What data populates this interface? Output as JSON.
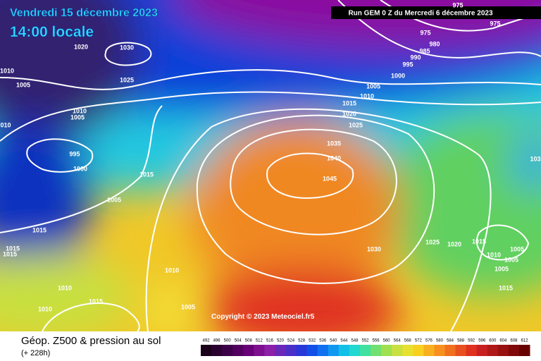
{
  "header": {
    "date": "Vendredi 15 décembre 2023",
    "time": "14:00 locale",
    "run": "Run GEM 0 Z du Mercredi 6 décembre 2023"
  },
  "copyright": "Copyright © 2023 Meteociel.fr5",
  "footer": {
    "title": "Géop. Z500 & pression au sol",
    "lead": "(+ 228h)"
  },
  "isobar_labels": [
    "975",
    "975",
    "975",
    "980",
    "985",
    "990",
    "995",
    "1000",
    "1005",
    "1010",
    "1015",
    "1020",
    "1025",
    "1035",
    "1040",
    "1045",
    "1030",
    "1025",
    "1020",
    "1010",
    "1005",
    "1010",
    "1005",
    "010",
    "995",
    "1000",
    "1015",
    "1005",
    "1015",
    "1015",
    "1015",
    "1030",
    "1025",
    "1020",
    "1015",
    "1005",
    "1010",
    "1005",
    "1005",
    "1015",
    "1010",
    "1010",
    "1015",
    "1010",
    "1005",
    "103"
  ],
  "scale": {
    "labels": [
      "492",
      "496",
      "500",
      "504",
      "508",
      "512",
      "516",
      "520",
      "524",
      "528",
      "532",
      "536",
      "540",
      "544",
      "548",
      "552",
      "556",
      "560",
      "564",
      "568",
      "572",
      "576",
      "580",
      "584",
      "588",
      "592",
      "596",
      "600",
      "604",
      "608",
      "612"
    ],
    "colors": [
      "#1a0018",
      "#2a0030",
      "#3c0048",
      "#520060",
      "#680078",
      "#7e1090",
      "#8c20a8",
      "#6a28b8",
      "#4a30c8",
      "#2838d8",
      "#1050e8",
      "#1070f0",
      "#1098f0",
      "#10c0e8",
      "#20d8d0",
      "#40e0a0",
      "#70e070",
      "#a0e050",
      "#c8e040",
      "#e8e030",
      "#f8d020",
      "#f8b020",
      "#f89020",
      "#f07020",
      "#e85020",
      "#e03020",
      "#c82020",
      "#b01818",
      "#981010",
      "#800808",
      "#680000"
    ]
  }
}
